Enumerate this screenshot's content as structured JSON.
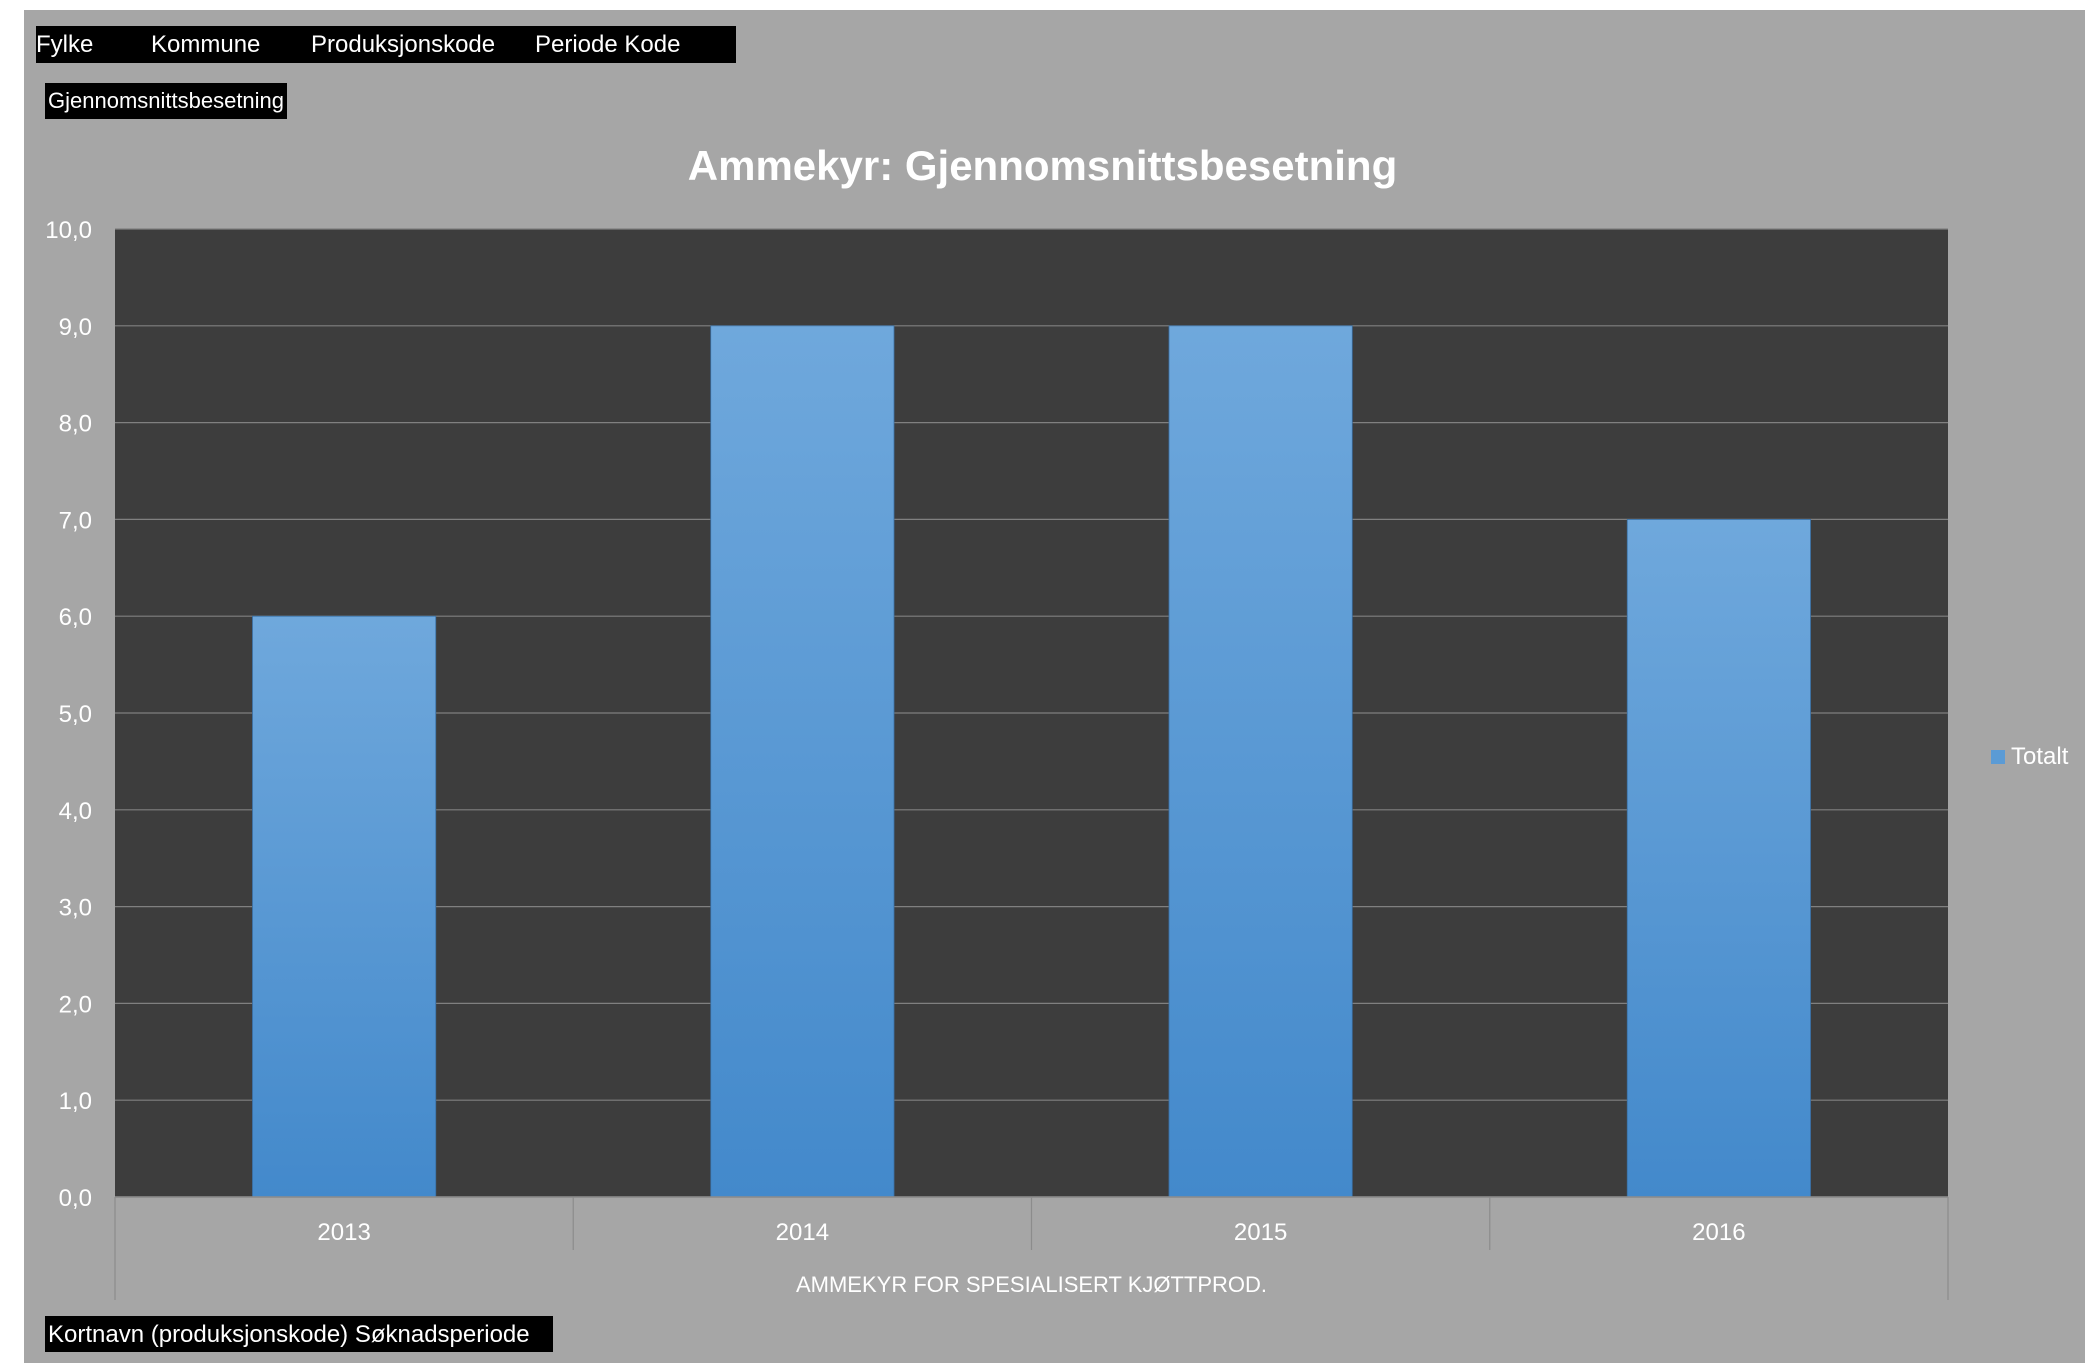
{
  "filters": {
    "items": [
      {
        "label": "Fylke"
      },
      {
        "label": "Kommune"
      },
      {
        "label": "Produksjonskode"
      },
      {
        "label": "Periode Kode"
      }
    ]
  },
  "value_field": {
    "label": "Gjennomsnittsbesetning"
  },
  "axis_field": {
    "label": "Kortnavn (produksjonskode) Søknadsperiode"
  },
  "colors": {
    "background": "#a6a6a6",
    "plot_area": "#3d3d3d",
    "bar_top": "#6fa8dc",
    "bar_bottom": "#4389cb",
    "text": "#ffffff"
  },
  "chart_data": {
    "type": "bar",
    "title": "Ammekyr: Gjennomsnittsbesetning",
    "group_label": "AMMEKYR FOR SPESIALISERT KJØTTPROD.",
    "categories": [
      "2013",
      "2014",
      "2015",
      "2016"
    ],
    "series": [
      {
        "name": "Totalt",
        "values": [
          6.0,
          9.0,
          9.0,
          7.0
        ]
      }
    ],
    "ylim": [
      0,
      10
    ],
    "ytick_step": 1,
    "ytick_labels": [
      "0,0",
      "1,0",
      "2,0",
      "3,0",
      "4,0",
      "5,0",
      "6,0",
      "7,0",
      "8,0",
      "9,0",
      "10,0"
    ],
    "grid": true,
    "legend": "right"
  }
}
